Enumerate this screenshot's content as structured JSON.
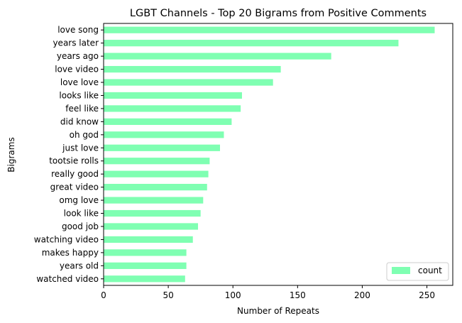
{
  "chart_data": {
    "type": "bar",
    "orientation": "horizontal",
    "title": "LGBT Channels - Top 20 Bigrams from Positive Comments",
    "xlabel": "Number of Repeats",
    "ylabel": "Bigrams",
    "xlim": [
      0,
      270
    ],
    "xticks": [
      0,
      50,
      100,
      150,
      200,
      250
    ],
    "grid": false,
    "legend_position": "bottom-right",
    "bar_color": "#7fffb2",
    "categories": [
      "love song",
      "years later",
      "years ago",
      "love video",
      "love love",
      "looks like",
      "feel like",
      "did know",
      "oh god",
      "just love",
      "tootsie rolls",
      "really good",
      "great video",
      "omg love",
      "look like",
      "good job",
      "watching video",
      "makes happy",
      "years old",
      "watched video"
    ],
    "series": [
      {
        "name": "count",
        "values": [
          256,
          228,
          176,
          137,
          131,
          107,
          106,
          99,
          93,
          90,
          82,
          81,
          80,
          77,
          75,
          73,
          69,
          64,
          64,
          63
        ]
      }
    ]
  }
}
